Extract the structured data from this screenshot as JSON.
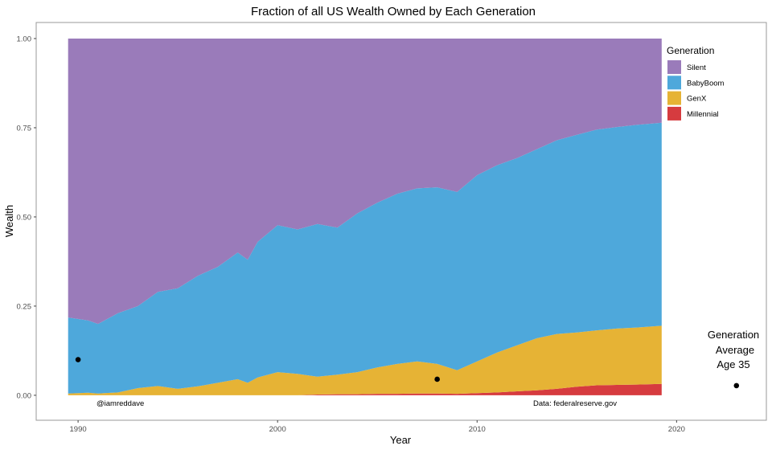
{
  "chart_data": {
    "type": "area",
    "stacked": true,
    "title": "Fraction of all US Wealth Owned by Each Generation",
    "xlabel": "Year",
    "ylabel": "Wealth",
    "xlim": [
      1987.9,
      2024.5
    ],
    "ylim": [
      -0.07,
      1.045
    ],
    "x_ticks": [
      1990,
      2000,
      2010,
      2020
    ],
    "y_ticks": [
      "0.00",
      "0.25",
      "0.50",
      "0.75",
      "1.00"
    ],
    "y_tick_values": [
      0,
      0.25,
      0.5,
      0.75,
      1.0
    ],
    "grid": false,
    "legend": {
      "title": "Generation",
      "position": "right"
    },
    "x": [
      1989.5,
      1990.5,
      1991,
      1992,
      1993,
      1994,
      1995,
      1996,
      1997,
      1998,
      1998.5,
      1999,
      2000,
      2001,
      2002,
      2003,
      2004,
      2005,
      2006,
      2007,
      2008,
      2009,
      2010,
      2011,
      2012,
      2013,
      2014,
      2015,
      2016,
      2017,
      2018,
      2019.25
    ],
    "series": [
      {
        "name": "Silent",
        "color": "#9A7BBA",
        "values": [
          0.782,
          0.79,
          0.8,
          0.77,
          0.75,
          0.71,
          0.7,
          0.665,
          0.64,
          0.6,
          0.62,
          0.57,
          0.523,
          0.535,
          0.52,
          0.53,
          0.49,
          0.46,
          0.435,
          0.42,
          0.417,
          0.43,
          0.383,
          0.355,
          0.335,
          0.31,
          0.285,
          0.27,
          0.255,
          0.248,
          0.242,
          0.236
        ]
      },
      {
        "name": "BabyBoom",
        "color": "#4EA8DB",
        "values": [
          0.213,
          0.203,
          0.195,
          0.222,
          0.23,
          0.264,
          0.282,
          0.31,
          0.325,
          0.355,
          0.345,
          0.38,
          0.412,
          0.405,
          0.428,
          0.412,
          0.445,
          0.462,
          0.477,
          0.485,
          0.495,
          0.5,
          0.522,
          0.525,
          0.525,
          0.53,
          0.543,
          0.554,
          0.563,
          0.565,
          0.568,
          0.569
        ]
      },
      {
        "name": "GenX",
        "color": "#E6B335",
        "values": [
          0.005,
          0.007,
          0.005,
          0.008,
          0.02,
          0.026,
          0.018,
          0.025,
          0.035,
          0.045,
          0.035,
          0.05,
          0.065,
          0.06,
          0.05,
          0.055,
          0.062,
          0.074,
          0.084,
          0.09,
          0.083,
          0.066,
          0.089,
          0.112,
          0.129,
          0.146,
          0.154,
          0.152,
          0.154,
          0.158,
          0.16,
          0.163
        ]
      },
      {
        "name": "Millennial",
        "color": "#D63B3F",
        "values": [
          0,
          0,
          0,
          0,
          0,
          0,
          0,
          0,
          0,
          0,
          0,
          0,
          0,
          0,
          0.002,
          0.003,
          0.003,
          0.004,
          0.004,
          0.005,
          0.005,
          0.004,
          0.006,
          0.008,
          0.011,
          0.014,
          0.018,
          0.024,
          0.028,
          0.029,
          0.03,
          0.032
        ]
      }
    ],
    "points": [
      {
        "x": 1990,
        "y": 0.1
      },
      {
        "x": 2008,
        "y": 0.045
      },
      {
        "x": 2023,
        "y": 0.027
      }
    ],
    "annotations": {
      "credit": "@iamreddave",
      "source": "Data: federalreserve.gov",
      "point_label": [
        "Generation",
        "Average",
        "Age 35"
      ]
    }
  }
}
